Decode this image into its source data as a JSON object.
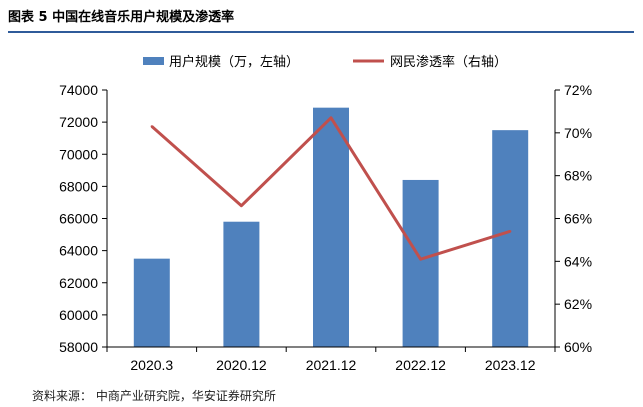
{
  "header": {
    "figure_title": "图表 5 中国在线音乐用户规模及渗透率"
  },
  "source": {
    "text": "资料来源：  中商产业研究院，华安证券研究所"
  },
  "chart_data": {
    "type": "bar",
    "categories": [
      "2020.3",
      "2020.12",
      "2021.12",
      "2022.12",
      "2023.12"
    ],
    "series": [
      {
        "name": "用户规模（万，左轴）",
        "type": "bar",
        "axis": "left",
        "color": "#4f81bd",
        "values": [
          63500,
          65800,
          72900,
          68400,
          71500
        ]
      },
      {
        "name": "网民渗透率（右轴）",
        "type": "line",
        "axis": "right",
        "color": "#c0504d",
        "values": [
          70.3,
          66.6,
          70.7,
          64.1,
          65.4
        ]
      }
    ],
    "y_left": {
      "min": 58000,
      "max": 74000,
      "step": 2000,
      "ticks": [
        "58000",
        "60000",
        "62000",
        "64000",
        "66000",
        "68000",
        "70000",
        "72000",
        "74000"
      ]
    },
    "y_right": {
      "min": 60,
      "max": 72,
      "step": 2,
      "ticks": [
        "60%",
        "62%",
        "64%",
        "66%",
        "68%",
        "70%",
        "72%"
      ]
    },
    "legend": "top",
    "grid": false
  }
}
